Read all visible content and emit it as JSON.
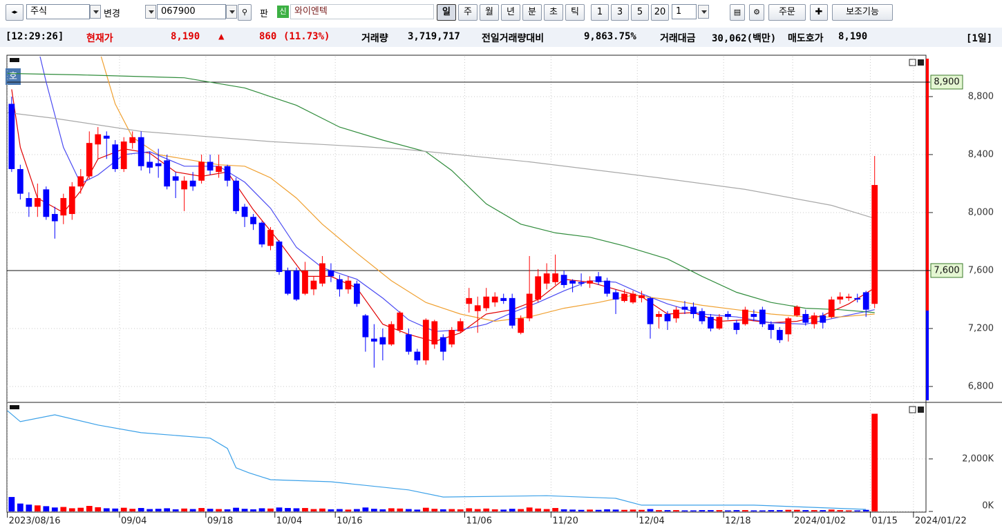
{
  "toolbar": {
    "market": "주식",
    "change": "변경",
    "code": "067900",
    "board": "판",
    "new_badge": "신",
    "name": "와이엔텍",
    "periods": [
      "일",
      "주",
      "월",
      "년",
      "분",
      "초",
      "틱"
    ],
    "intervals": [
      "1",
      "3",
      "5",
      "20"
    ],
    "count": "1",
    "order": "주문",
    "tools": "보조기능"
  },
  "status": {
    "time": "[12:29:26]",
    "price_label": "현재가",
    "price": "8,190",
    "arrow": "▲",
    "change": "860",
    "change_rate": "(11.73%)",
    "volume_label": "거래량",
    "volume": "3,719,717",
    "prev_ratio_label": "전일거래량대비",
    "prev_ratio": "9,863.75%",
    "amount_label": "거래대금",
    "amount": "30,062(백만)",
    "ask_label": "매도호가",
    "ask": "8,190",
    "period": "[1일]"
  },
  "chart_panel": {
    "badge": "호"
  },
  "chart_data": [
    {
      "type": "candlestick",
      "up_color": "#ff0000",
      "down_color": "#0000ff",
      "categories": [
        "2023/08/16",
        null,
        null,
        null,
        null,
        null,
        null,
        null,
        null,
        null,
        null,
        null,
        null,
        "09/04",
        null,
        null,
        null,
        null,
        null,
        null,
        null,
        null,
        null,
        "09/18",
        null,
        null,
        null,
        null,
        null,
        null,
        null,
        "10/04",
        null,
        null,
        null,
        null,
        null,
        null,
        "10/16",
        null,
        null,
        null,
        null,
        null,
        null,
        null,
        null,
        null,
        null,
        null,
        null,
        null,
        null,
        "11/06",
        null,
        null,
        null,
        null,
        null,
        null,
        null,
        null,
        null,
        "11/20",
        null,
        null,
        null,
        null,
        null,
        null,
        null,
        null,
        null,
        "12/04",
        null,
        null,
        null,
        null,
        null,
        null,
        null,
        null,
        null,
        "12/18",
        null,
        null,
        null,
        null,
        null,
        null,
        null,
        "2024/01/02",
        null,
        null,
        null,
        null,
        null,
        null,
        null,
        null,
        "01/15",
        null,
        null,
        null,
        null,
        "2024/01/22"
      ],
      "open": [
        8750,
        8300,
        8100,
        8040,
        8160,
        7990,
        7980,
        7990,
        8180,
        8250,
        8470,
        8530,
        8470,
        8300,
        8480,
        8520,
        8350,
        8340,
        8360,
        8250,
        8160,
        8220,
        8220,
        8350,
        8280,
        8320,
        8220,
        8040,
        7970,
        7930,
        7770,
        7800,
        7600,
        7600,
        7440,
        7470,
        7510,
        7600,
        7540,
        7470,
        7510,
        7290,
        7130,
        7140,
        7090,
        7190,
        7160,
        7040,
        6980,
        7090,
        7140,
        7090,
        7180,
        7370,
        7320,
        7340,
        7380,
        7410,
        7410,
        7170,
        7270,
        7400,
        7510,
        7520,
        7570,
        7530,
        7520,
        7510,
        7560,
        7530,
        7450,
        7390,
        7380,
        7410,
        7410,
        7280,
        7300,
        7270,
        7350,
        7350,
        7320,
        7280,
        7200,
        7300,
        7240,
        7230,
        7300,
        7330,
        7230,
        7190,
        7160,
        7290,
        7300,
        7230,
        7290,
        7280,
        7400,
        7410,
        7410,
        7450,
        7370,
        null,
        null,
        null,
        null,
        null
      ],
      "high": [
        8800,
        8330,
        8140,
        8200,
        8180,
        8040,
        8130,
        8210,
        8300,
        8560,
        8590,
        8560,
        8500,
        8520,
        8560,
        8560,
        8420,
        8440,
        8400,
        8280,
        8250,
        8280,
        8400,
        8400,
        8400,
        8330,
        8240,
        8060,
        7990,
        7940,
        7900,
        7810,
        7620,
        7620,
        7660,
        7560,
        7700,
        7650,
        7570,
        7560,
        7530,
        7300,
        7230,
        7200,
        7250,
        7320,
        7200,
        7060,
        7270,
        7260,
        7160,
        7210,
        7270,
        7480,
        7420,
        7480,
        7450,
        7440,
        7440,
        7290,
        7700,
        7610,
        7650,
        7710,
        7600,
        7540,
        7580,
        7560,
        7590,
        7550,
        7470,
        7470,
        7460,
        7460,
        7420,
        7320,
        7320,
        7350,
        7390,
        7380,
        7340,
        7300,
        7300,
        7320,
        7260,
        7350,
        7330,
        7350,
        7250,
        7210,
        7280,
        7360,
        7330,
        7310,
        7310,
        7420,
        7450,
        7440,
        7440,
        7460,
        8390,
        null,
        null,
        null,
        null,
        null
      ],
      "low": [
        8280,
        8090,
        7970,
        7970,
        7950,
        7820,
        7920,
        7950,
        8130,
        8230,
        8370,
        8370,
        8280,
        8280,
        8440,
        8290,
        8270,
        8240,
        8160,
        8100,
        8010,
        8150,
        8200,
        8260,
        8240,
        8180,
        7990,
        7900,
        7880,
        7760,
        7740,
        7570,
        7430,
        7390,
        7430,
        7430,
        7490,
        7520,
        7420,
        7440,
        7350,
        7040,
        6930,
        6980,
        7080,
        7170,
        7020,
        6950,
        6950,
        7060,
        6980,
        7070,
        7170,
        7310,
        7170,
        7320,
        7350,
        7370,
        7200,
        7160,
        7250,
        7380,
        7470,
        7500,
        7480,
        7450,
        7490,
        7480,
        7500,
        7420,
        7300,
        7380,
        7370,
        7380,
        7130,
        7200,
        7190,
        7240,
        7300,
        7270,
        7230,
        7180,
        7190,
        7260,
        7160,
        7220,
        7250,
        7210,
        7130,
        7100,
        7110,
        7280,
        7220,
        7200,
        7200,
        7270,
        7370,
        7390,
        7380,
        7280,
        7340,
        null,
        null,
        null,
        null,
        null
      ],
      "close": [
        8300,
        8130,
        8040,
        8100,
        7970,
        7940,
        8100,
        8180,
        8250,
        8480,
        8540,
        8510,
        8300,
        8490,
        8520,
        8320,
        8310,
        8320,
        8180,
        8220,
        8220,
        8180,
        8350,
        8290,
        8320,
        8220,
        8010,
        7970,
        7920,
        7780,
        7880,
        7590,
        7440,
        7400,
        7600,
        7530,
        7650,
        7560,
        7470,
        7530,
        7370,
        7140,
        7110,
        7090,
        7230,
        7310,
        7040,
        6980,
        7260,
        7250,
        7040,
        7190,
        7250,
        7410,
        7360,
        7420,
        7420,
        7390,
        7220,
        7270,
        7440,
        7560,
        7580,
        7580,
        7500,
        7510,
        7510,
        7530,
        7520,
        7440,
        7400,
        7440,
        7440,
        7430,
        7230,
        7300,
        7250,
        7330,
        7330,
        7300,
        7250,
        7200,
        7280,
        7280,
        7190,
        7330,
        7280,
        7230,
        7190,
        7120,
        7270,
        7350,
        7240,
        7290,
        7240,
        7400,
        7420,
        7420,
        7400,
        7330,
        8190,
        null,
        null,
        null,
        null,
        null
      ],
      "moving_averages": [
        {
          "color": "#e00000",
          "x": [
            0,
            1,
            3,
            6,
            8,
            10,
            13,
            16,
            19,
            22,
            25,
            28,
            31,
            34,
            37,
            40,
            43,
            46,
            49,
            52,
            55,
            58,
            61,
            64,
            67,
            70,
            73,
            76,
            79,
            82,
            85,
            88,
            91,
            94,
            97,
            100
          ],
          "values": [
            8850,
            8450,
            8100,
            8000,
            8150,
            8370,
            8440,
            8410,
            8280,
            8250,
            8280,
            8020,
            7800,
            7560,
            7560,
            7480,
            7230,
            7160,
            7110,
            7170,
            7300,
            7330,
            7400,
            7540,
            7520,
            7470,
            7420,
            7300,
            7310,
            7250,
            7260,
            7240,
            7250,
            7290,
            7370,
            7480
          ]
        },
        {
          "color": "#4a4af2",
          "x": [
            3,
            4,
            6,
            8,
            10,
            13,
            16,
            20,
            24,
            27,
            30,
            33,
            36,
            40,
            43,
            46,
            49,
            52,
            55,
            58,
            61,
            64,
            67,
            70,
            73,
            76,
            80,
            84,
            88,
            92,
            96,
            100
          ],
          "values": [
            9150,
            8900,
            8450,
            8200,
            8260,
            8400,
            8420,
            8320,
            8320,
            8210,
            8030,
            7760,
            7620,
            7540,
            7410,
            7260,
            7180,
            7190,
            7230,
            7310,
            7380,
            7460,
            7530,
            7520,
            7440,
            7370,
            7300,
            7280,
            7240,
            7230,
            7280,
            7330
          ]
        },
        {
          "color": "#f0a030",
          "x": [
            10,
            12,
            14,
            17,
            20,
            24,
            27,
            30,
            33,
            36,
            40,
            44,
            48,
            52,
            56,
            60,
            64,
            68,
            72,
            76,
            80,
            84,
            88,
            92,
            96,
            100
          ],
          "values": [
            9150,
            8750,
            8520,
            8400,
            8370,
            8330,
            8320,
            8240,
            8100,
            7920,
            7720,
            7530,
            7380,
            7300,
            7250,
            7280,
            7340,
            7380,
            7430,
            7400,
            7360,
            7330,
            7300,
            7280,
            7280,
            7300
          ]
        },
        {
          "color": "#2e8b3a",
          "x": [
            -0.5,
            8,
            20,
            27,
            33,
            38,
            43,
            48,
            51,
            55,
            59,
            63,
            67,
            71,
            76,
            80,
            84,
            88,
            92,
            96,
            100
          ],
          "values": [
            8960,
            8950,
            8930,
            8860,
            8740,
            8590,
            8500,
            8420,
            8290,
            8060,
            7920,
            7860,
            7830,
            7770,
            7680,
            7560,
            7450,
            7380,
            7340,
            7330,
            7310
          ]
        },
        {
          "color": "#a8a8a8",
          "x": [
            -0.5,
            5,
            15,
            30,
            45,
            60,
            75,
            85,
            95,
            100
          ],
          "values": [
            8690,
            8650,
            8560,
            8490,
            8440,
            8350,
            8240,
            8160,
            8050,
            7960
          ]
        }
      ],
      "hlines": [
        {
          "value": 8900,
          "label": "8,900"
        },
        {
          "value": 7600,
          "label": "7,600"
        }
      ],
      "xlim": [
        -0.55,
        105.95
      ],
      "ylim": [
        6695,
        9076
      ],
      "yticks": [
        {
          "value": 6800,
          "label": "6,800"
        },
        {
          "value": 7200,
          "label": "7,200"
        },
        {
          "value": 7600,
          "label": "7,600"
        },
        {
          "value": 8000,
          "label": "8,000"
        },
        {
          "value": 8400,
          "label": "8,400"
        },
        {
          "value": 8800,
          "label": "8,800"
        }
      ],
      "grid": true
    },
    {
      "type": "bar",
      "values": [
        550,
        300,
        260,
        230,
        200,
        150,
        170,
        120,
        140,
        210,
        160,
        120,
        110,
        140,
        100,
        130,
        90,
        100,
        120,
        80,
        110,
        90,
        130,
        100,
        90,
        80,
        140,
        100,
        80,
        120,
        110,
        150,
        130,
        120,
        130,
        90,
        110,
        80,
        90,
        70,
        90,
        150,
        100,
        80,
        120,
        110,
        90,
        70,
        140,
        100,
        80,
        90,
        80,
        120,
        90,
        110,
        80,
        70,
        100,
        90,
        150,
        110,
        90,
        130,
        80,
        70,
        60,
        70,
        60,
        80,
        70,
        60,
        70,
        60,
        90,
        50,
        50,
        50,
        40,
        40,
        50,
        50,
        50,
        40,
        50,
        50,
        40,
        40,
        50,
        50,
        60,
        60,
        50,
        50,
        50,
        70,
        50,
        40,
        40,
        60,
        3720,
        null,
        null,
        null,
        null,
        null
      ],
      "volume_average": {
        "color": "#3aa0e8",
        "x": [
          -0.5,
          1,
          5,
          10,
          15,
          23,
          25,
          26,
          27.5,
          30,
          37,
          46,
          50,
          62,
          70,
          73,
          86,
          99
        ],
        "values": [
          3840,
          3420,
          3680,
          3290,
          3000,
          2790,
          2400,
          1660,
          1470,
          1210,
          1130,
          820,
          550,
          600,
          500,
          240,
          240,
          80
        ]
      },
      "ylim": [
        0,
        4100
      ],
      "yticks": [
        {
          "value": 0,
          "label": "0K"
        },
        {
          "value": 2000,
          "label": "2,000K"
        }
      ],
      "grid": true
    }
  ]
}
